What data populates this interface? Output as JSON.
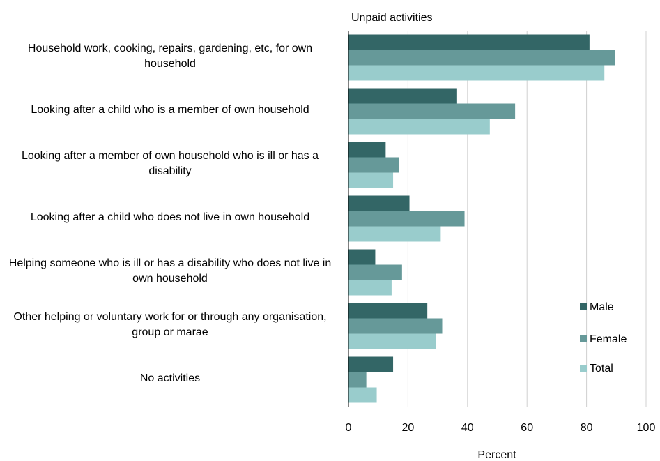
{
  "chart_data": {
    "type": "bar",
    "orientation": "horizontal",
    "title": "Unpaid activities",
    "xlabel": "Percent",
    "xlim": [
      0,
      100
    ],
    "xticks": [
      0,
      20,
      40,
      60,
      80,
      100
    ],
    "grid": true,
    "legend_position": "right",
    "categories": [
      "Household work, cooking, repairs, gardening, etc, for own household",
      "Looking after a child who is a member of own household",
      "Looking after a member of own household who is ill or has a disability",
      "Looking after a child who does not live in own household",
      "Helping someone who is ill or has a disability who does not live in own household",
      "Other helping or voluntary work for or through any organisation, group or marae",
      "No activities"
    ],
    "series": [
      {
        "name": "Male",
        "color": "#336666",
        "values": [
          81,
          36.5,
          12.5,
          20.5,
          9,
          26.5,
          15
        ]
      },
      {
        "name": "Female",
        "color": "#669999",
        "values": [
          89.5,
          56,
          17,
          39,
          18,
          31.5,
          6
        ]
      },
      {
        "name": "Total",
        "color": "#99CCCC",
        "values": [
          86,
          47.5,
          15,
          31,
          14.5,
          29.5,
          9.5
        ]
      }
    ]
  }
}
